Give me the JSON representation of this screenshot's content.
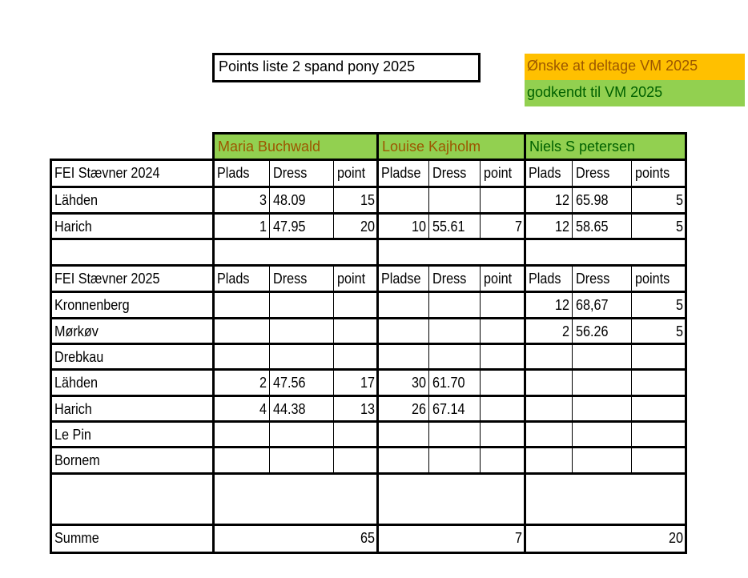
{
  "title": "Points liste 2 spand pony 2025",
  "legend": [
    {
      "label": "Ønske at deltage VM 2025",
      "bg": "#FFC000",
      "fg": "#9C5700"
    },
    {
      "label": "godkendt til VM 2025",
      "bg": "#92D050",
      "fg": "#006100"
    }
  ],
  "riders": [
    {
      "name": "Maria Buchwald",
      "bg": "#92D050",
      "fg": "#9C5700"
    },
    {
      "name": "Louise Kajholm",
      "bg": "#92D050",
      "fg": "#9C5700"
    },
    {
      "name": "Niels S petersen",
      "bg": "#92D050",
      "fg": "#006100"
    }
  ],
  "table": {
    "section_2024": {
      "header": [
        "FEI Stævner 2024",
        "Plads",
        "Dress",
        "point",
        "Pladse",
        "Dress",
        "point",
        "Plads",
        "Dress",
        "points"
      ],
      "rows": [
        [
          "Lähden",
          "3",
          "48.09",
          "15",
          "",
          "",
          "",
          "12",
          "65.98",
          "5"
        ],
        [
          "Harich",
          "1",
          "47.95",
          "20",
          "10",
          "55.61",
          "7",
          "12",
          "58.65",
          "5"
        ]
      ]
    },
    "section_2025": {
      "header": [
        "FEI Stævner 2025",
        "Plads",
        "Dress",
        "point",
        "Pladse",
        "Dress",
        "point",
        "Plads",
        "Dress",
        "points"
      ],
      "rows": [
        [
          "Kronnenberg",
          "",
          "",
          "",
          "",
          "",
          "",
          "12",
          "68,67",
          "5"
        ],
        [
          "Mørkøv",
          "",
          "",
          "",
          "",
          "",
          "",
          "2",
          "56.26",
          "5"
        ],
        [
          "Drebkau",
          "",
          "",
          "",
          "",
          "",
          "",
          "",
          "",
          ""
        ],
        [
          "Lähden",
          "2",
          "47.56",
          "17",
          "30",
          "61.70",
          "",
          "",
          "",
          ""
        ],
        [
          "Harich",
          "4",
          "44.38",
          "13",
          "26",
          "67.14",
          "",
          "",
          "",
          ""
        ],
        [
          "Le Pin",
          "",
          "",
          "",
          "",
          "",
          "",
          "",
          "",
          ""
        ],
        [
          "Bornem",
          "",
          "",
          "",
          "",
          "",
          "",
          "",
          "",
          ""
        ]
      ]
    },
    "summary": {
      "label": "Summe",
      "totals": [
        "65",
        "7",
        "20"
      ]
    }
  }
}
